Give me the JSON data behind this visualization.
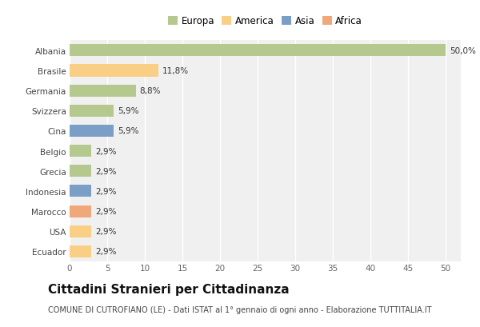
{
  "countries": [
    "Albania",
    "Brasile",
    "Germania",
    "Svizzera",
    "Cina",
    "Belgio",
    "Grecia",
    "Indonesia",
    "Marocco",
    "USA",
    "Ecuador"
  ],
  "values": [
    50.0,
    11.8,
    8.8,
    5.9,
    5.9,
    2.9,
    2.9,
    2.9,
    2.9,
    2.9,
    2.9
  ],
  "labels": [
    "50,0%",
    "11,8%",
    "8,8%",
    "5,9%",
    "5,9%",
    "2,9%",
    "2,9%",
    "2,9%",
    "2,9%",
    "2,9%",
    "2,9%"
  ],
  "colors": [
    "#b5c98e",
    "#f9cf85",
    "#b5c98e",
    "#b5c98e",
    "#7b9ec7",
    "#b5c98e",
    "#b5c98e",
    "#7b9ec7",
    "#f0a87a",
    "#f9cf85",
    "#f9cf85"
  ],
  "legend_labels": [
    "Europa",
    "America",
    "Asia",
    "Africa"
  ],
  "legend_colors": [
    "#b5c98e",
    "#f9cf85",
    "#7b9ec7",
    "#f0a87a"
  ],
  "xlim": [
    0,
    52
  ],
  "xticks": [
    0,
    5,
    10,
    15,
    20,
    25,
    30,
    35,
    40,
    45,
    50
  ],
  "title": "Cittadini Stranieri per Cittadinanza",
  "subtitle": "COMUNE DI CUTROFIANO (LE) - Dati ISTAT al 1° gennaio di ogni anno - Elaborazione TUTTITALIA.IT",
  "fig_bg_color": "#ffffff",
  "plot_bg_color": "#f0f0f0",
  "bar_height": 0.6,
  "label_fontsize": 7.5,
  "title_fontsize": 11,
  "subtitle_fontsize": 7,
  "tick_fontsize": 7.5,
  "legend_fontsize": 8.5
}
